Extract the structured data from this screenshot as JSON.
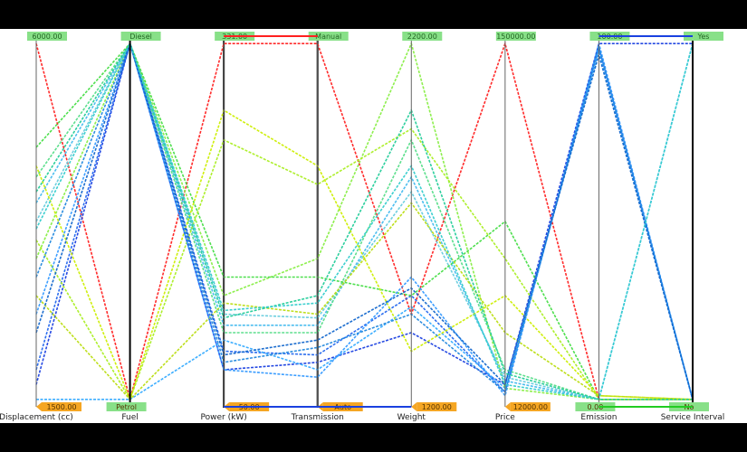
{
  "chart_data": {
    "type": "parallel-coordinates",
    "axes": [
      {
        "name": "Displacement (cc)",
        "max_label": "6000.00",
        "min_label": "1500.00"
      },
      {
        "name": "Fuel",
        "max_label": "Diesel",
        "min_label": "Petrol"
      },
      {
        "name": "Power (kW)",
        "max_label": "331.00",
        "min_label": "50.00"
      },
      {
        "name": "Transmission",
        "max_label": "Manual",
        "min_label": "Auto"
      },
      {
        "name": "Weight",
        "max_label": "2200.00",
        "min_label": "1200.00"
      },
      {
        "name": "Price",
        "max_label": "150000.00",
        "min_label": "12000.00"
      },
      {
        "name": "Emission",
        "max_label": "100.00",
        "min_label": "0.00"
      },
      {
        "name": "Service Interval",
        "max_label": "Yes",
        "min_label": "No"
      }
    ],
    "series_note": "",
    "lines": [
      {
        "color": "#ff2020",
        "values": [
          0.98,
          0.02,
          0.98,
          0.98,
          0.25,
          0.98,
          0.02,
          0.02
        ]
      },
      {
        "color": "#1a40e0",
        "values": [
          0.06,
          0.98,
          0.1,
          0.12,
          0.2,
          0.06,
          0.98,
          0.98
        ]
      },
      {
        "color": "#2266ee",
        "values": [
          0.1,
          0.98,
          0.15,
          0.14,
          0.3,
          0.04,
          0.97,
          0.02
        ]
      },
      {
        "color": "#33aaff",
        "values": [
          0.02,
          0.02,
          0.18,
          0.1,
          0.27,
          0.05,
          0.96,
          0.02
        ]
      },
      {
        "color": "#44bbee",
        "values": [
          0.55,
          0.98,
          0.22,
          0.22,
          0.62,
          0.07,
          0.02,
          0.98
        ]
      },
      {
        "color": "#66ccdd",
        "values": [
          0.5,
          0.98,
          0.25,
          0.24,
          0.58,
          0.08,
          0.02,
          0.02
        ]
      },
      {
        "color": "#55dd88",
        "values": [
          0.62,
          0.98,
          0.2,
          0.2,
          0.72,
          0.1,
          0.02,
          0.02
        ]
      },
      {
        "color": "#88ee44",
        "values": [
          0.4,
          0.98,
          0.3,
          0.4,
          0.98,
          0.05,
          0.02,
          0.02
        ]
      },
      {
        "color": "#44dd44",
        "values": [
          0.7,
          0.98,
          0.35,
          0.35,
          0.3,
          0.5,
          0.02,
          0.02
        ]
      },
      {
        "color": "#aaee22",
        "values": [
          0.45,
          0.02,
          0.72,
          0.6,
          0.75,
          0.4,
          0.02,
          0.02
        ]
      },
      {
        "color": "#ccee00",
        "values": [
          0.65,
          0.02,
          0.8,
          0.65,
          0.15,
          0.3,
          0.03,
          0.02
        ]
      },
      {
        "color": "#bbdd11",
        "values": [
          0.3,
          0.02,
          0.28,
          0.25,
          0.55,
          0.2,
          0.03,
          0.02
        ]
      },
      {
        "color": "#3399ff",
        "values": [
          0.25,
          0.98,
          0.1,
          0.08,
          0.35,
          0.03,
          0.98,
          0.02
        ]
      },
      {
        "color": "#2288dd",
        "values": [
          0.35,
          0.98,
          0.12,
          0.16,
          0.25,
          0.04,
          0.97,
          0.02
        ]
      },
      {
        "color": "#1166cc",
        "values": [
          0.2,
          0.98,
          0.14,
          0.18,
          0.32,
          0.06,
          0.95,
          0.02
        ]
      },
      {
        "color": "#22cc99",
        "values": [
          0.58,
          0.98,
          0.24,
          0.3,
          0.8,
          0.09,
          0.02,
          0.02
        ]
      },
      {
        "color": "#33cccc",
        "values": [
          0.48,
          0.98,
          0.26,
          0.28,
          0.65,
          0.06,
          0.02,
          0.98
        ]
      }
    ]
  }
}
